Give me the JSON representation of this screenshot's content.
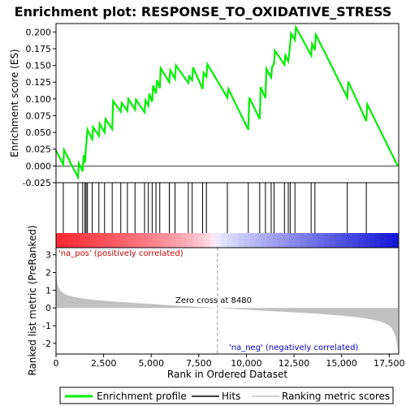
{
  "chart_data": {
    "type": "line",
    "title": "Enrichment plot: RESPONSE_TO_OXIDATIVE_STRESS",
    "es_panel": {
      "ylabel": "Enrichment score (ES)",
      "ylim": [
        -0.025,
        0.2125
      ],
      "yticks": [
        -0.025,
        0.0,
        0.025,
        0.05,
        0.075,
        0.1,
        0.125,
        0.15,
        0.175,
        0.2
      ],
      "ytick_labels": [
        "-0.025",
        "0.000",
        "0.025",
        "0.050",
        "0.075",
        "0.100",
        "0.125",
        "0.150",
        "0.175",
        "0.200"
      ],
      "series": [
        {
          "name": "Enrichment profile",
          "color": "#00ee00",
          "x": [
            0,
            380,
            420,
            1150,
            1200,
            1400,
            1450,
            1520,
            1580,
            1600,
            1650,
            1900,
            1950,
            2250,
            2300,
            2550,
            2600,
            2950,
            3000,
            3400,
            3450,
            3750,
            3800,
            4150,
            4200,
            4650,
            4700,
            4850,
            4900,
            5050,
            5100,
            5250,
            5300,
            5450,
            5500,
            5950,
            6000,
            6250,
            6300,
            6950,
            7000,
            7150,
            7200,
            7700,
            7750,
            7900,
            7950,
            9000,
            9050,
            10100,
            10150,
            10700,
            10750,
            11000,
            11050,
            11300,
            11350,
            11450,
            11500,
            12000,
            12050,
            12200,
            12250,
            12300,
            12350,
            12550,
            12600,
            13400,
            13450,
            13600,
            13650,
            15300,
            15350,
            16300,
            16350,
            17950
          ],
          "y": [
            0.023,
            0.002,
            0.024,
            -0.017,
            0.004,
            -0.008,
            0.016,
            0.005,
            0.03,
            0.036,
            0.054,
            0.04,
            0.058,
            0.045,
            0.063,
            0.05,
            0.07,
            0.055,
            0.097,
            0.081,
            0.094,
            0.082,
            0.1,
            0.084,
            0.099,
            0.08,
            0.098,
            0.09,
            0.108,
            0.096,
            0.12,
            0.108,
            0.128,
            0.116,
            0.146,
            0.125,
            0.143,
            0.13,
            0.15,
            0.124,
            0.134,
            0.128,
            0.147,
            0.115,
            0.139,
            0.133,
            0.152,
            0.102,
            0.115,
            0.054,
            0.102,
            0.07,
            0.118,
            0.101,
            0.145,
            0.132,
            0.148,
            0.152,
            0.172,
            0.151,
            0.165,
            0.156,
            0.168,
            0.182,
            0.198,
            0.188,
            0.207,
            0.165,
            0.182,
            0.173,
            0.196,
            0.102,
            0.126,
            0.067,
            0.092,
            0.0
          ]
        }
      ]
    },
    "hits_positions": [
      380,
      1150,
      1400,
      1520,
      1580,
      1650,
      1900,
      2250,
      2550,
      2950,
      3400,
      3750,
      4150,
      4650,
      4850,
      5050,
      5250,
      5450,
      5950,
      6250,
      6950,
      7150,
      7700,
      7900,
      9000,
      10100,
      10700,
      11000,
      11300,
      11450,
      12000,
      12200,
      12300,
      12550,
      13400,
      13600,
      15300,
      16300
    ],
    "metric_panel": {
      "ylabel": "Ranked list metric (PreRanked)",
      "ylim": [
        -2.6,
        3.4
      ],
      "yticks": [
        -2,
        -1,
        0,
        1,
        2,
        3
      ],
      "ytick_labels": [
        "-2",
        "-1",
        "0",
        "1",
        "2",
        "3"
      ],
      "metric_curve": {
        "x": [
          0,
          30,
          80,
          150,
          250,
          400,
          600,
          900,
          1300,
          2000,
          3000,
          4000,
          5000,
          6000,
          7000,
          8000,
          8480,
          9000,
          10000,
          11000,
          12000,
          13000,
          14000,
          15000,
          16000,
          16500,
          17000,
          17300,
          17500,
          17650,
          17750,
          17850,
          17900,
          17950
        ],
        "y": [
          2.2,
          1.7,
          1.35,
          1.1,
          0.95,
          0.82,
          0.72,
          0.63,
          0.55,
          0.45,
          0.36,
          0.29,
          0.22,
          0.15,
          0.09,
          0.03,
          0.0,
          -0.04,
          -0.1,
          -0.16,
          -0.22,
          -0.28,
          -0.35,
          -0.43,
          -0.55,
          -0.63,
          -0.75,
          -0.88,
          -1.0,
          -1.15,
          -1.35,
          -1.7,
          -2.0,
          -2.4
        ]
      },
      "zero_cross_label": "Zero cross at 8480",
      "zero_cross": 8480,
      "pos_label": "'na_pos' (positively correlated)",
      "neg_label": "'na_neg' (negatively correlated)"
    },
    "xlabel": "Rank in Ordered Dataset",
    "xlim": [
      0,
      18000
    ],
    "xticks": [
      0,
      2500,
      5000,
      7500,
      10000,
      12500,
      15000,
      17500
    ],
    "xtick_labels": [
      "0",
      "2,500",
      "5,000",
      "7,500",
      "10,000",
      "12,500",
      "15,000",
      "17,500"
    ],
    "legend": {
      "placement": "bottom",
      "items": [
        {
          "label": "Enrichment profile",
          "color": "#00ee00"
        },
        {
          "label": "Hits",
          "color": "#000000"
        },
        {
          "label": "Ranking metric scores",
          "color": "#c0c0c0"
        }
      ]
    },
    "colors": {
      "pos_text": "#cc0000",
      "neg_text": "#0000cc",
      "metric_fill": "#c0c0c0",
      "zero_line": "#999999"
    }
  }
}
